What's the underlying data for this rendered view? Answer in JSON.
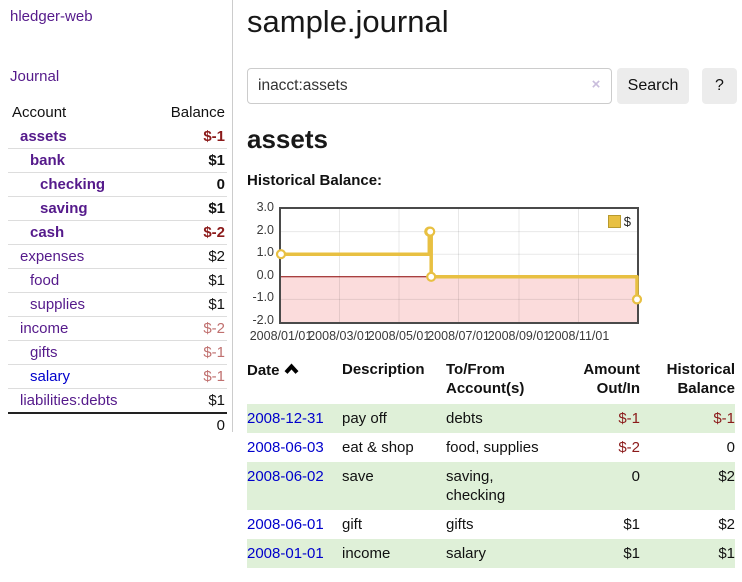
{
  "app": {
    "brand": "hledger-web"
  },
  "sidebar": {
    "journal_link": "Journal",
    "accounts": {
      "col_account": "Account",
      "col_balance": "Balance",
      "rows": [
        {
          "name": "assets",
          "balance": "$-1"
        },
        {
          "name": "bank",
          "balance": "$1"
        },
        {
          "name": "checking",
          "balance": "0"
        },
        {
          "name": "saving",
          "balance": "$1"
        },
        {
          "name": "cash",
          "balance": "$-2"
        },
        {
          "name": "expenses",
          "balance": "$2"
        },
        {
          "name": "food",
          "balance": "$1"
        },
        {
          "name": "supplies",
          "balance": "$1"
        },
        {
          "name": "income",
          "balance": "$-2"
        },
        {
          "name": "gifts",
          "balance": "$-1"
        },
        {
          "name": "salary",
          "balance": "$-1"
        },
        {
          "name": "liabilities:debts",
          "balance": "$1"
        }
      ],
      "total": "0"
    }
  },
  "main": {
    "title": "sample.journal",
    "search": {
      "value": "inacct:assets",
      "clear": "×",
      "button": "Search",
      "help": "?"
    },
    "account_heading": "assets",
    "chart_label": "Historical Balance:"
  },
  "chart_data": {
    "type": "line",
    "title": "Historical Balance:",
    "series": [
      {
        "name": "$",
        "color": "#e8c042",
        "step": true,
        "points": [
          [
            "2008-01-01",
            1
          ],
          [
            "2008-06-01",
            2
          ],
          [
            "2008-06-02",
            2
          ],
          [
            "2008-06-03",
            0
          ],
          [
            "2008-12-31",
            -1
          ]
        ]
      }
    ],
    "x_range": [
      "2008-01-01",
      "2008-12-31"
    ],
    "x_ticks": [
      {
        "date": "2008-01-01",
        "label": "2008/01/01"
      },
      {
        "date": "2008-03-01",
        "label": "2008/03/01"
      },
      {
        "date": "2008-05-01",
        "label": "2008/05/01"
      },
      {
        "date": "2008-07-01",
        "label": "2008/07/01"
      },
      {
        "date": "2008-09-01",
        "label": "2008/09/01"
      },
      {
        "date": "2008-11-01",
        "label": "2008/11/01"
      }
    ],
    "y_ticks": [
      3.0,
      2.0,
      1.0,
      0.0,
      -1.0,
      -2.0
    ],
    "ylim": [
      -2,
      3
    ],
    "grid": true,
    "legend": {
      "position": "top-right",
      "items": [
        {
          "label": "$",
          "color": "#e8c042"
        }
      ]
    },
    "negative_region_color": "#fbdcdc",
    "zero_line_color": "#8b0000"
  },
  "register": {
    "headers": {
      "date": "Date",
      "description": "Description",
      "tofrom_1": "To/From",
      "tofrom_2": "Account(s)",
      "amount_1": "Amount",
      "amount_2": "Out/In",
      "balance_1": "Historical",
      "balance_2": "Balance"
    },
    "rows": [
      {
        "date": "2008-12-31",
        "description": "pay off",
        "accounts": "debts",
        "amount": "$-1",
        "balance": "$-1"
      },
      {
        "date": "2008-06-03",
        "description": "eat & shop",
        "accounts": "food, supplies",
        "amount": "$-2",
        "balance": "0"
      },
      {
        "date": "2008-06-02",
        "description": "save",
        "accounts": "saving,\nchecking",
        "amount": "0",
        "balance": "$2"
      },
      {
        "date": "2008-06-01",
        "description": "gift",
        "accounts": "gifts",
        "amount": "$1",
        "balance": "$2"
      },
      {
        "date": "2008-01-01",
        "description": "income",
        "accounts": "salary",
        "amount": "$1",
        "balance": "$1"
      }
    ]
  }
}
